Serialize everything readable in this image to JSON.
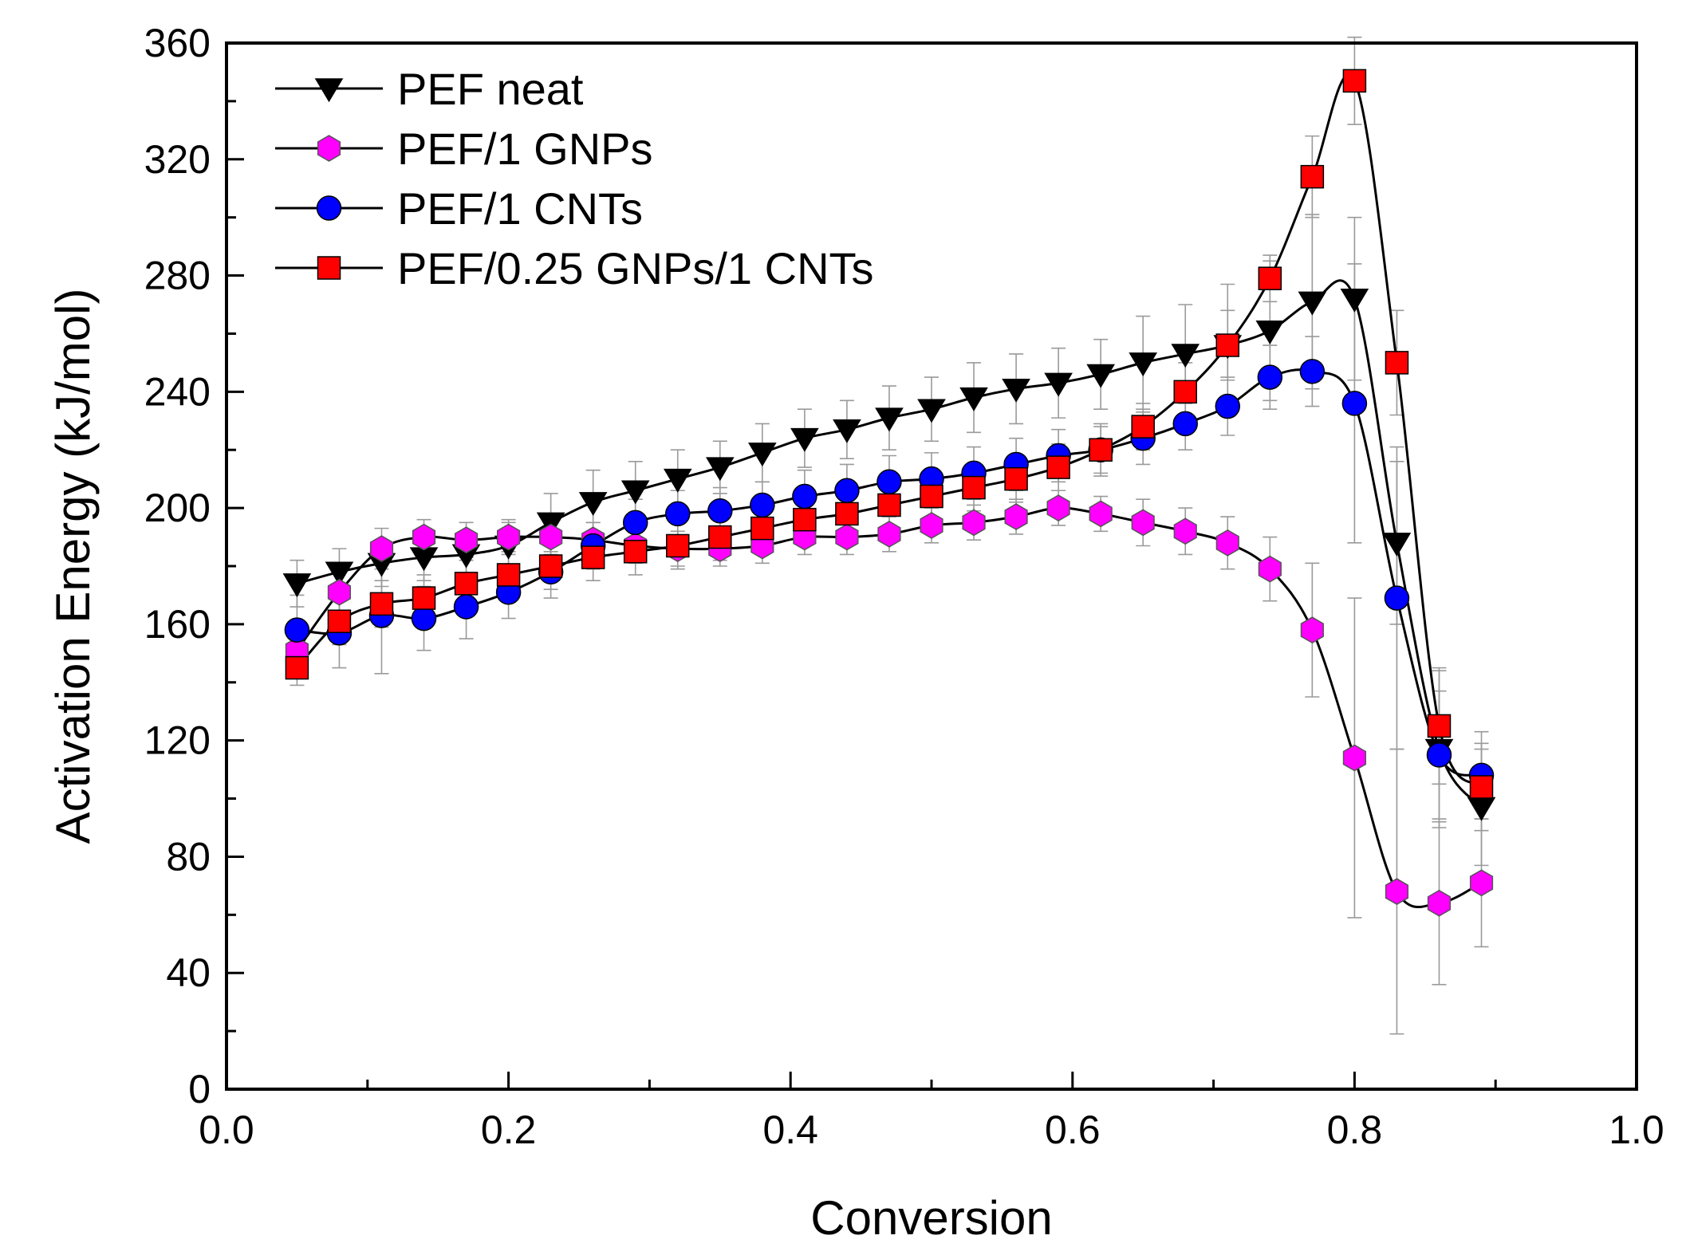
{
  "chart_data": {
    "type": "line",
    "title": "",
    "xlabel": "Conversion",
    "ylabel": "Activation Energy (kJ/mol)",
    "xlim": [
      0.0,
      1.0
    ],
    "ylim": [
      0,
      360
    ],
    "x_ticks": [
      0.0,
      0.2,
      0.4,
      0.6,
      0.8,
      1.0
    ],
    "x_tick_labels": [
      "0.0",
      "0.2",
      "0.4",
      "0.6",
      "0.8",
      "1.0"
    ],
    "y_ticks": [
      0,
      40,
      80,
      120,
      160,
      200,
      240,
      280,
      320,
      360
    ],
    "y_tick_labels": [
      "0",
      "40",
      "80",
      "120",
      "160",
      "200",
      "240",
      "280",
      "320",
      "360"
    ],
    "grid": false,
    "legend_position": "top-left",
    "x": [
      0.05,
      0.08,
      0.11,
      0.14,
      0.17,
      0.2,
      0.23,
      0.26,
      0.29,
      0.32,
      0.35,
      0.38,
      0.41,
      0.44,
      0.47,
      0.5,
      0.53,
      0.56,
      0.59,
      0.62,
      0.65,
      0.68,
      0.71,
      0.74,
      0.77,
      0.8,
      0.83,
      0.86,
      0.89
    ],
    "series": [
      {
        "name": "PEF neat",
        "marker": "triangle-down",
        "color": "#000000",
        "values": [
          174,
          178,
          181,
          183,
          184,
          187,
          195,
          202,
          206,
          210,
          214,
          219,
          224,
          227,
          231,
          234,
          238,
          241,
          243,
          246,
          250,
          253,
          256,
          261,
          271,
          272,
          188,
          117,
          97
        ],
        "errors": [
          8,
          8,
          8,
          8,
          8,
          8,
          10,
          11,
          10,
          10,
          9,
          10,
          10,
          10,
          11,
          11,
          12,
          12,
          12,
          12,
          16,
          17,
          21,
          24,
          30,
          28,
          28,
          27,
          20
        ]
      },
      {
        "name": "PEF/1 GNPs",
        "marker": "hexagon",
        "color": "#ff00ff",
        "values": [
          151,
          171,
          186,
          190,
          189,
          190,
          190,
          189,
          187,
          186,
          186,
          187,
          190,
          190,
          191,
          194,
          195,
          197,
          200,
          198,
          195,
          192,
          188,
          179,
          158,
          114,
          68,
          64,
          71
        ],
        "errors": [
          6,
          7,
          7,
          6,
          6,
          6,
          6,
          6,
          6,
          6,
          6,
          6,
          6,
          6,
          6,
          6,
          6,
          6,
          6,
          6,
          8,
          8,
          9,
          11,
          23,
          55,
          49,
          28,
          22
        ]
      },
      {
        "name": "PEF/1 CNTs",
        "marker": "circle",
        "color": "#0000ff",
        "values": [
          158,
          157,
          163,
          162,
          166,
          171,
          178,
          187,
          195,
          198,
          199,
          201,
          204,
          206,
          209,
          210,
          212,
          215,
          218,
          220,
          224,
          229,
          235,
          245,
          247,
          236,
          169,
          115,
          108
        ],
        "errors": [
          12,
          12,
          20,
          11,
          11,
          9,
          9,
          8,
          8,
          8,
          8,
          8,
          9,
          9,
          9,
          9,
          9,
          9,
          9,
          9,
          9,
          9,
          10,
          11,
          12,
          48,
          52,
          22,
          15
        ]
      },
      {
        "name": "PEF/0.25 GNPs/1 CNTs",
        "marker": "square",
        "color": "#ff0000",
        "values": [
          145,
          161,
          167,
          169,
          174,
          177,
          180,
          183,
          185,
          187,
          190,
          193,
          196,
          198,
          201,
          204,
          207,
          210,
          214,
          220,
          228,
          240,
          256,
          279,
          314,
          347,
          250,
          125,
          104
        ],
        "errors": [
          6,
          8,
          8,
          8,
          8,
          8,
          8,
          8,
          8,
          8,
          8,
          8,
          8,
          8,
          8,
          8,
          8,
          8,
          8,
          8,
          8,
          10,
          12,
          8,
          14,
          15,
          18,
          20,
          15
        ]
      }
    ]
  }
}
